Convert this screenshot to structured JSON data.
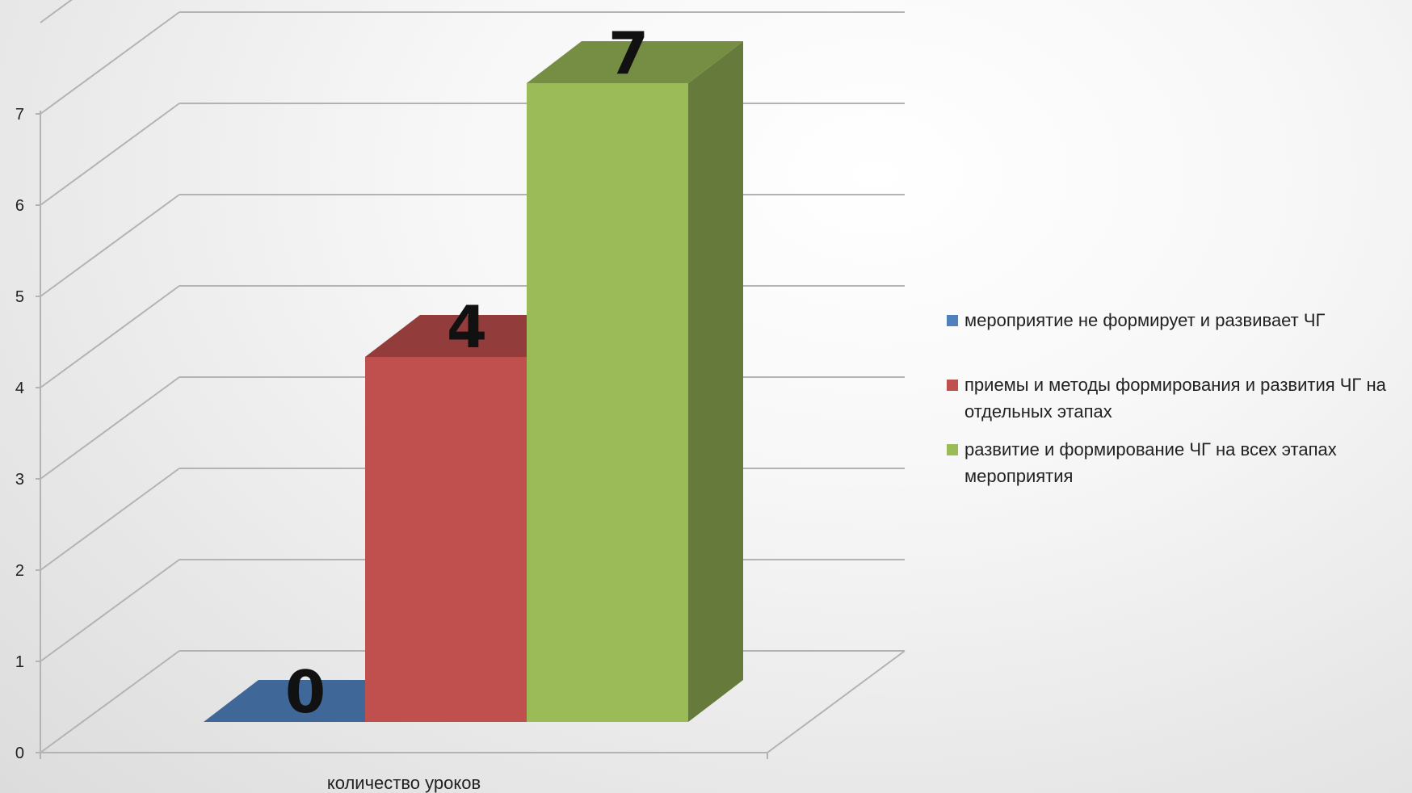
{
  "chart_data": {
    "type": "bar",
    "title": "",
    "xlabel": "",
    "ylabel": "",
    "categories": [
      "количество уроков"
    ],
    "series": [
      {
        "name": "мероприятие не формирует и развивает ЧГ",
        "values": [
          0
        ],
        "color": "#4f81bd"
      },
      {
        "name": "приемы и методы формирования и развития ЧГ на отдельных этапах",
        "values": [
          4
        ],
        "color": "#c0504d"
      },
      {
        "name": "развитие и формирование ЧГ на всех этапах мероприятия",
        "values": [
          7
        ],
        "color": "#9bbb59"
      }
    ],
    "data_labels": [
      "0",
      "4",
      "7"
    ],
    "ylim": [
      0,
      7
    ],
    "yticks": [
      "0",
      "1",
      "2",
      "3",
      "4",
      "5",
      "6",
      "7"
    ],
    "grid": true,
    "legend_position": "right",
    "style": "3d-column"
  }
}
